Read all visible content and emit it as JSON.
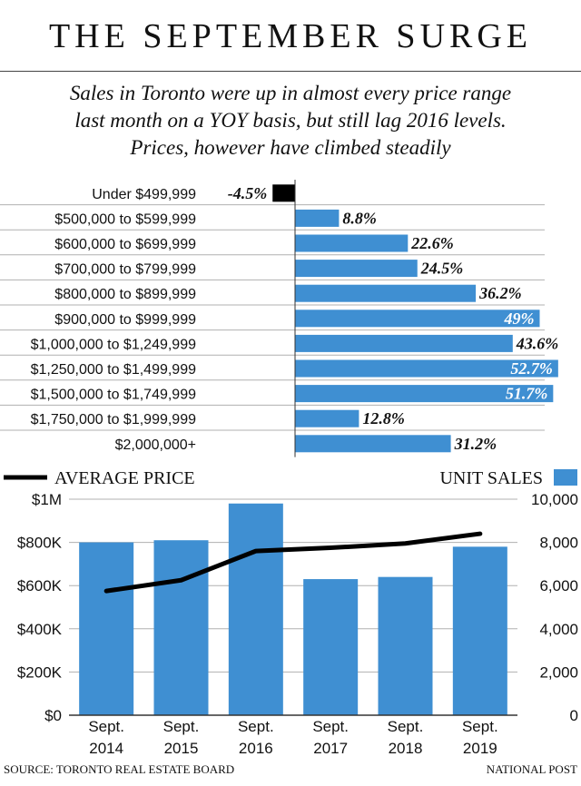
{
  "title": "THE SEPTEMBER SURGE",
  "subtitle": [
    "Sales in Toronto were up in almost every price range",
    "last month on a YOY basis, but still lag 2016 levels.",
    "Prices, however have climbed steadily"
  ],
  "colors": {
    "bar": "#3f8fd2",
    "negative": "#000000",
    "line": "#000000",
    "grid": "#b0b0b0"
  },
  "chart_data": [
    {
      "type": "bar",
      "orientation": "horizontal",
      "categories": [
        "Under $499,999",
        "$500,000 to $599,999",
        "$600,000 to $699,999",
        "$700,000 to $799,999",
        "$800,000 to $899,999",
        "$900,000 to $999,999",
        "$1,000,000 to $1,249,999",
        "$1,250,000 to $1,499,999",
        "$1,500,000 to $1,749,999",
        "$1,750,000 to $1,999,999",
        "$2,000,000+"
      ],
      "values": [
        -4.5,
        8.8,
        22.6,
        24.5,
        36.2,
        49,
        43.6,
        52.7,
        51.7,
        12.8,
        31.2
      ],
      "labels": [
        "-4.5%",
        "8.8%",
        "22.6%",
        "24.5%",
        "36.2%",
        "49%",
        "43.6%",
        "52.7%",
        "51.7%",
        "12.8%",
        "31.2%"
      ],
      "label_inside": [
        false,
        false,
        false,
        false,
        false,
        true,
        false,
        true,
        true,
        false,
        false
      ],
      "xlim": [
        -6,
        56
      ],
      "grid": "horizontal row separators"
    },
    {
      "type": "bar+line",
      "categories": [
        [
          "Sept.",
          "2014"
        ],
        [
          "Sept.",
          "2015"
        ],
        [
          "Sept.",
          "2016"
        ],
        [
          "Sept.",
          "2017"
        ],
        [
          "Sept.",
          "2018"
        ],
        [
          "Sept.",
          "2019"
        ]
      ],
      "series": [
        {
          "name": "UNIT SALES",
          "type": "bar",
          "axis": "right",
          "values": [
            8000,
            8100,
            9800,
            6300,
            6400,
            7800
          ]
        },
        {
          "name": "AVERAGE PRICE",
          "type": "line",
          "axis": "left",
          "values": [
            575000,
            625000,
            760000,
            775000,
            795000,
            840000
          ]
        }
      ],
      "left_axis": {
        "ticks": [
          "$0",
          "$200K",
          "$400K",
          "$600K",
          "$800K",
          "$1M"
        ],
        "ylim": [
          0,
          1000000
        ]
      },
      "right_axis": {
        "ticks": [
          "0",
          "2,000",
          "4,000",
          "6,000",
          "8,000",
          "10,000"
        ],
        "ylim": [
          0,
          10000
        ]
      },
      "legend": {
        "line": "AVERAGE PRICE",
        "bar": "UNIT SALES",
        "placement": "top"
      },
      "grid": true
    }
  ],
  "footer": {
    "source": "SOURCE: TORONTO REAL ESTATE BOARD",
    "credit": "NATIONAL POST"
  }
}
